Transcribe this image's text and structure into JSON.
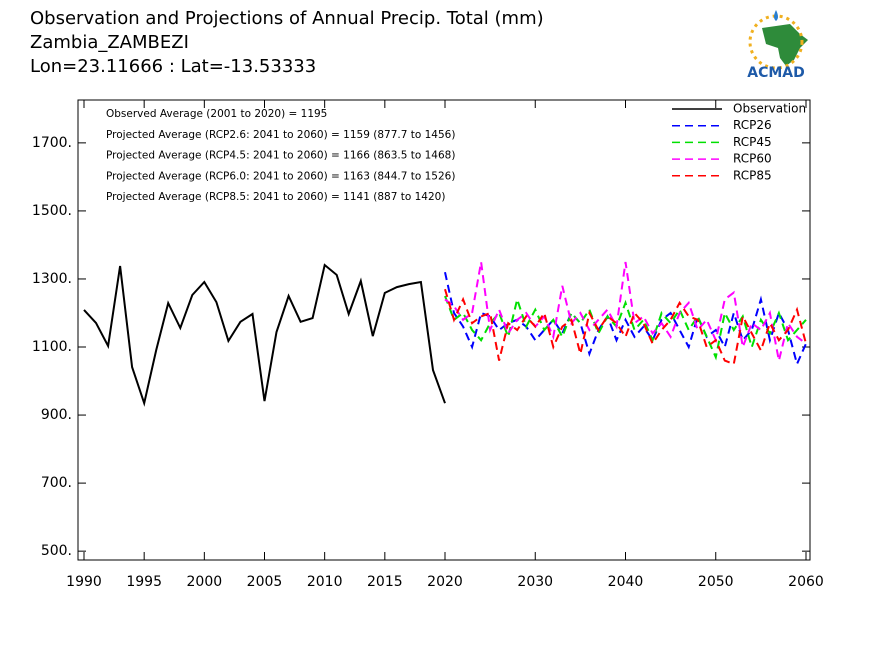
{
  "chart_data": {
    "type": "line",
    "title": "Observation and Projections of Annual Precip. Total (mm)",
    "subtitle": "Zambia_ZAMBEZI",
    "location": "Lon=23.11666 : Lat=-13.53333",
    "logo_text": "ACMAD",
    "annotations": [
      "Observed Average (2001 to 2020) = 1195",
      "Projected Average (RCP2.6: 2041 to 2060) = 1159 (877.7 to 1456)",
      "Projected Average (RCP4.5: 2041 to 2060) = 1166 (863.5 to 1468)",
      "Projected Average (RCP6.0: 2041 to 2060) = 1163 (844.7 to 1526)",
      "Projected Average (RCP8.5: 2041 to 2060) = 1141 (887 to 1420)"
    ],
    "xlim": [
      1990,
      2060
    ],
    "xticks": [
      1990,
      1995,
      2000,
      2005,
      2010,
      2015,
      2020,
      2030,
      2040,
      2050,
      2060
    ],
    "ylim": [
      474,
      1826
    ],
    "yticks": [
      {
        "value": 500,
        "label": "500."
      },
      {
        "value": 700,
        "label": "700."
      },
      {
        "value": 900,
        "label": "900."
      },
      {
        "value": 1100,
        "label": "1100."
      },
      {
        "value": 1300,
        "label": "1300."
      },
      {
        "value": 1500,
        "label": "1500."
      },
      {
        "value": 1700,
        "label": "1700."
      }
    ],
    "legend": "upper right",
    "series": [
      {
        "name": "Observation",
        "color": "#000000",
        "dashed": false,
        "x": [
          1990,
          1991,
          1992,
          1993,
          1994,
          1995,
          1996,
          1997,
          1998,
          1999,
          2000,
          2001,
          2002,
          2003,
          2004,
          2005,
          2006,
          2007,
          2008,
          2009,
          2010,
          2011,
          2012,
          2013,
          2014,
          2015,
          2016,
          2017,
          2018,
          2019,
          2020
        ],
        "values": [
          1209,
          1171,
          1103,
          1338,
          1041,
          935,
          1091,
          1229,
          1156,
          1253,
          1291,
          1232,
          1118,
          1174,
          1197,
          941,
          1144,
          1250,
          1174,
          1185,
          1341,
          1312,
          1197,
          1294,
          1132,
          1259,
          1276,
          1285,
          1291,
          1032,
          935
        ]
      },
      {
        "name": "RCP26",
        "color": "#0000ff",
        "dashed": true,
        "x": [
          2020,
          2021,
          2022,
          2023,
          2024,
          2025,
          2026,
          2027,
          2028,
          2029,
          2030,
          2031,
          2032,
          2033,
          2034,
          2035,
          2036,
          2037,
          2038,
          2039,
          2040,
          2041,
          2042,
          2043,
          2044,
          2045,
          2046,
          2047,
          2048,
          2049,
          2050,
          2051,
          2052,
          2053,
          2054,
          2055,
          2056,
          2057,
          2058,
          2059,
          2060
        ],
        "values": [
          1320,
          1200,
          1160,
          1100,
          1200,
          1190,
          1150,
          1170,
          1180,
          1160,
          1120,
          1150,
          1180,
          1140,
          1200,
          1170,
          1080,
          1150,
          1190,
          1120,
          1180,
          1130,
          1160,
          1120,
          1180,
          1200,
          1150,
          1100,
          1190,
          1130,
          1150,
          1100,
          1200,
          1120,
          1150,
          1240,
          1120,
          1200,
          1150,
          1050,
          1110
        ]
      },
      {
        "name": "RCP45",
        "color": "#00e000",
        "dashed": true,
        "x": [
          2020,
          2021,
          2022,
          2023,
          2024,
          2025,
          2026,
          2027,
          2028,
          2029,
          2030,
          2031,
          2032,
          2033,
          2034,
          2035,
          2036,
          2037,
          2038,
          2039,
          2040,
          2041,
          2042,
          2043,
          2044,
          2045,
          2046,
          2047,
          2048,
          2049,
          2050,
          2051,
          2052,
          2053,
          2054,
          2055,
          2056,
          2057,
          2058,
          2059,
          2060
        ],
        "values": [
          1250,
          1180,
          1200,
          1150,
          1120,
          1170,
          1200,
          1130,
          1240,
          1160,
          1210,
          1150,
          1180,
          1130,
          1200,
          1170,
          1210,
          1140,
          1190,
          1160,
          1230,
          1150,
          1180,
          1120,
          1200,
          1170,
          1210,
          1150,
          1190,
          1130,
          1070,
          1200,
          1150,
          1190,
          1100,
          1180,
          1140,
          1200,
          1120,
          1150,
          1180
        ]
      },
      {
        "name": "RCP60",
        "color": "#ff00ff",
        "dashed": true,
        "x": [
          2020,
          2021,
          2022,
          2023,
          2024,
          2025,
          2026,
          2027,
          2028,
          2029,
          2030,
          2031,
          2032,
          2033,
          2034,
          2035,
          2036,
          2037,
          2038,
          2039,
          2040,
          2041,
          2042,
          2043,
          2044,
          2045,
          2046,
          2047,
          2048,
          2049,
          2050,
          2051,
          2052,
          2053,
          2054,
          2055,
          2056,
          2057,
          2058,
          2059,
          2060
        ],
        "values": [
          1240,
          1220,
          1180,
          1200,
          1350,
          1150,
          1210,
          1140,
          1180,
          1200,
          1160,
          1190,
          1130,
          1280,
          1170,
          1200,
          1150,
          1180,
          1210,
          1160,
          1350,
          1170,
          1190,
          1140,
          1170,
          1130,
          1200,
          1230,
          1150,
          1180,
          1120,
          1240,
          1260,
          1100,
          1170,
          1150,
          1200,
          1060,
          1170,
          1130,
          1110
        ]
      },
      {
        "name": "RCP85",
        "color": "#ff0000",
        "dashed": true,
        "x": [
          2020,
          2021,
          2022,
          2023,
          2024,
          2025,
          2026,
          2027,
          2028,
          2029,
          2030,
          2031,
          2032,
          2033,
          2034,
          2035,
          2036,
          2037,
          2038,
          2039,
          2040,
          2041,
          2042,
          2043,
          2044,
          2045,
          2046,
          2047,
          2048,
          2049,
          2050,
          2051,
          2052,
          2053,
          2054,
          2055,
          2056,
          2057,
          2058,
          2059,
          2060
        ],
        "values": [
          1270,
          1180,
          1240,
          1170,
          1190,
          1200,
          1060,
          1170,
          1150,
          1190,
          1160,
          1200,
          1100,
          1160,
          1180,
          1080,
          1200,
          1150,
          1190,
          1170,
          1130,
          1200,
          1170,
          1110,
          1150,
          1180,
          1230,
          1190,
          1180,
          1100,
          1120,
          1060,
          1050,
          1190,
          1140,
          1090,
          1170,
          1120,
          1150,
          1210,
          1110
        ]
      }
    ]
  }
}
